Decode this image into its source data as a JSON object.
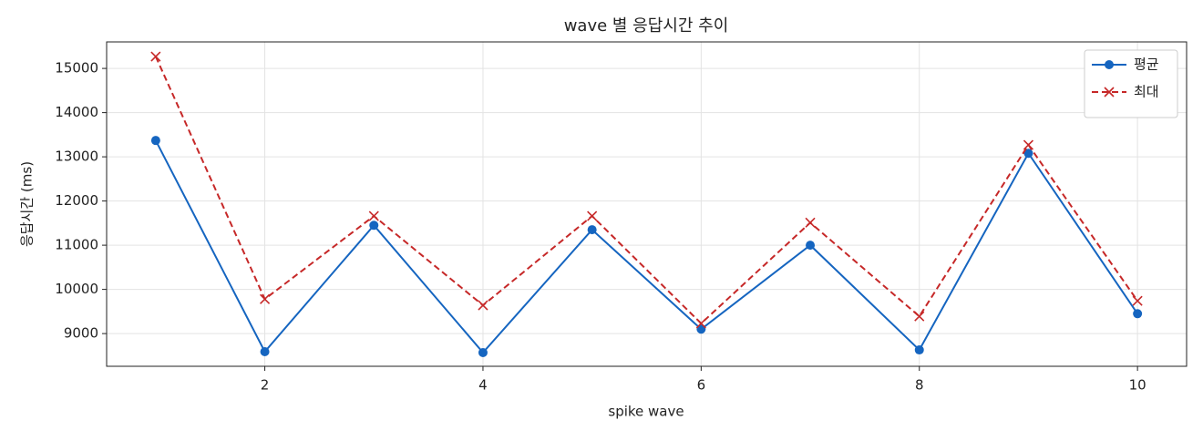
{
  "chart_data": {
    "type": "line",
    "title": "wave 별 응답시간 추이",
    "xlabel": "spike wave",
    "ylabel": "응답시간 (ms)",
    "x": [
      1,
      2,
      3,
      4,
      5,
      6,
      7,
      8,
      9,
      10
    ],
    "series": [
      {
        "name": "평균",
        "color": "#1565c0",
        "linestyle": "solid",
        "marker": "circle",
        "values": [
          13370,
          8590,
          11450,
          8570,
          11350,
          9100,
          11000,
          8630,
          13080,
          9450
        ]
      },
      {
        "name": "최대",
        "color": "#c62828",
        "linestyle": "dashed",
        "marker": "x",
        "values": [
          15270,
          9780,
          11660,
          9640,
          11660,
          9230,
          11510,
          9390,
          13270,
          9740
        ]
      }
    ],
    "xlim": [
      0.55,
      10.45
    ],
    "ylim": [
      8260,
      15600
    ],
    "xticks": [
      2,
      4,
      6,
      8,
      10
    ],
    "yticks": [
      9000,
      10000,
      11000,
      12000,
      13000,
      14000,
      15000
    ],
    "grid": true,
    "legend": "upper-right"
  }
}
